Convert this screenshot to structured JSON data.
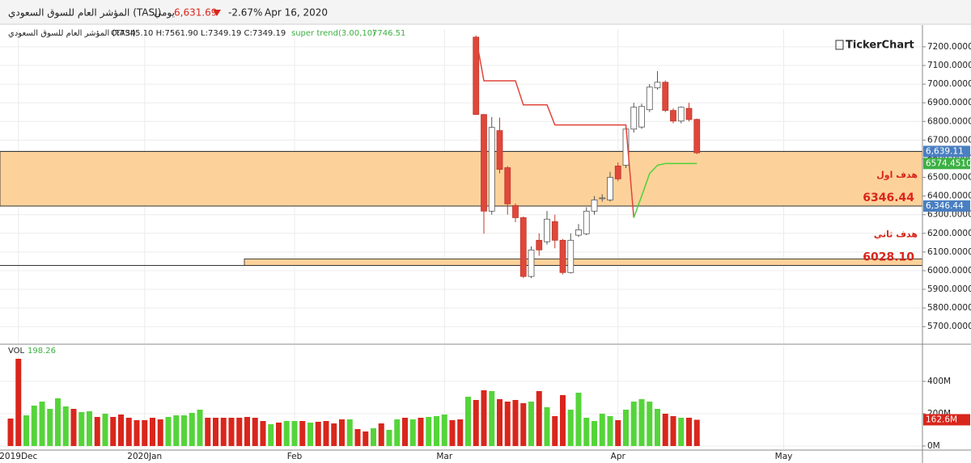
{
  "header": {
    "name": "المؤشر العام للسوق السعودي (TASI)",
    "period": "يومي",
    "last": "6,631.69",
    "change": "-2.67%",
    "date": "Apr 16, 2020"
  },
  "legend": {
    "name": "المؤشر العام للسوق السعودي (TASI)",
    "ohlc": "O:7345.10 H:7561.90 L:7349.19 C:7349.19",
    "indicator": "super trend(3.00,10)",
    "indicator_value": "7746.51",
    "volume": "VOL",
    "volume_value": "198.26"
  },
  "logo": "TickerChart",
  "chart_data": {
    "type": "candlestick",
    "categories": [
      null,
      "2019Dec",
      null,
      null,
      null,
      null,
      null,
      null,
      null,
      null,
      null,
      null,
      null,
      null,
      null,
      null,
      null,
      "2020Jan",
      null,
      null,
      null,
      null,
      null,
      null,
      null,
      null,
      null,
      null,
      null,
      null,
      null,
      null,
      null,
      null,
      null,
      null,
      "Feb",
      null,
      null,
      null,
      null,
      null,
      null,
      null,
      null,
      null,
      null,
      null,
      null,
      null,
      null,
      null,
      null,
      null,
      null,
      "Mar",
      null,
      null,
      null,
      null,
      null,
      null,
      null,
      null,
      null,
      null,
      null,
      null,
      null,
      null,
      null,
      null,
      null,
      null,
      null,
      null,
      null,
      "Apr",
      null,
      null,
      null,
      null,
      null,
      null,
      null,
      null,
      null,
      null,
      null,
      null,
      null,
      null,
      null,
      null,
      null,
      null,
      null,
      null,
      "May",
      null,
      null,
      null,
      null,
      null,
      null,
      null,
      null,
      null,
      null,
      null,
      null,
      null,
      null,
      null,
      null,
      null
    ],
    "open": [
      null,
      null,
      null,
      null,
      null,
      null,
      null,
      null,
      null,
      null,
      null,
      null,
      null,
      null,
      null,
      null,
      null,
      null,
      null,
      null,
      null,
      null,
      null,
      null,
      null,
      null,
      null,
      null,
      null,
      null,
      null,
      null,
      null,
      null,
      null,
      null,
      null,
      null,
      null,
      null,
      null,
      null,
      null,
      null,
      null,
      null,
      null,
      null,
      null,
      null,
      null,
      null,
      null,
      null,
      null,
      null,
      null,
      null,
      null,
      7252,
      6837,
      6319,
      6751,
      6552,
      6349,
      6284,
      5969,
      6163,
      6155,
      6263,
      6163,
      5990,
      6190,
      6198,
      6319,
      6388,
      6379,
      6561,
      6565,
      6759,
      6770,
      6863,
      6980,
      7010,
      6859,
      6802,
      6870,
      6811,
      null,
      null,
      null,
      null,
      null,
      null,
      null,
      null,
      null,
      null,
      null,
      null,
      null,
      null,
      null,
      null,
      null,
      null,
      null,
      null,
      null,
      null,
      null,
      null,
      null,
      null,
      null,
      null
    ],
    "high": [
      null,
      null,
      null,
      null,
      null,
      null,
      null,
      null,
      null,
      null,
      null,
      null,
      null,
      null,
      null,
      null,
      null,
      null,
      null,
      null,
      null,
      null,
      null,
      null,
      null,
      null,
      null,
      null,
      null,
      null,
      null,
      null,
      null,
      null,
      null,
      null,
      null,
      null,
      null,
      null,
      null,
      null,
      null,
      null,
      null,
      null,
      null,
      null,
      null,
      null,
      null,
      null,
      null,
      null,
      null,
      null,
      null,
      null,
      null,
      7260,
      6840,
      6824,
      6820,
      6560,
      6360,
      6290,
      6130,
      6200,
      6320,
      6300,
      6170,
      6200,
      6250,
      6340,
      6400,
      6410,
      6530,
      6580,
      6780,
      6900,
      6895,
      7000,
      7070,
      7020,
      6870,
      6880,
      6900,
      6815,
      null,
      null,
      null,
      null,
      null,
      null,
      null,
      null,
      null,
      null,
      null,
      null,
      null,
      null,
      null,
      null,
      null,
      null,
      null,
      null,
      null,
      null,
      null,
      null,
      null,
      null,
      null,
      null
    ],
    "low": [
      null,
      null,
      null,
      null,
      null,
      null,
      null,
      null,
      null,
      null,
      null,
      null,
      null,
      null,
      null,
      null,
      null,
      null,
      null,
      null,
      null,
      null,
      null,
      null,
      null,
      null,
      null,
      null,
      null,
      null,
      null,
      null,
      null,
      null,
      null,
      null,
      null,
      null,
      null,
      null,
      null,
      null,
      null,
      null,
      null,
      null,
      null,
      null,
      null,
      null,
      null,
      null,
      null,
      null,
      null,
      null,
      null,
      null,
      null,
      6837,
      6198,
      6300,
      6522,
      6300,
      6260,
      5960,
      5960,
      6080,
      6140,
      6120,
      5980,
      5985,
      6180,
      6190,
      6300,
      6370,
      6370,
      6480,
      6550,
      6740,
      6760,
      6850,
      6970,
      6850,
      6790,
      6790,
      6800,
      6625,
      null,
      null,
      null,
      null,
      null,
      null,
      null,
      null,
      null,
      null,
      null,
      null,
      null,
      null,
      null,
      null,
      null,
      null,
      null,
      null,
      null,
      null,
      null,
      null,
      null,
      null,
      null,
      null
    ],
    "close": [
      null,
      null,
      null,
      null,
      null,
      null,
      null,
      null,
      null,
      null,
      null,
      null,
      null,
      null,
      null,
      null,
      null,
      null,
      null,
      null,
      null,
      null,
      null,
      null,
      null,
      null,
      null,
      null,
      null,
      null,
      null,
      null,
      null,
      null,
      null,
      null,
      null,
      null,
      null,
      null,
      null,
      null,
      null,
      null,
      null,
      null,
      null,
      null,
      null,
      null,
      null,
      null,
      null,
      null,
      null,
      null,
      null,
      null,
      null,
      6837,
      6319,
      6768,
      6543,
      6358,
      6284,
      5969,
      6111,
      6111,
      6276,
      6163,
      5990,
      6163,
      6219,
      6319,
      6379,
      6390,
      6500,
      6492,
      6759,
      6876,
      6880,
      6984,
      7010,
      6859,
      6802,
      6876,
      6810,
      6631.69,
      null,
      null,
      null,
      null,
      null,
      null,
      null,
      null,
      null,
      null,
      null,
      null,
      null,
      null,
      null,
      null,
      null,
      null,
      null,
      null,
      null,
      null,
      null,
      null,
      null,
      null,
      null,
      null
    ],
    "up_color": "#ffffff",
    "down_color": "#e0473c",
    "ylim": [
      5610,
      7295
    ],
    "yticks": [
      {
        "value": 5700,
        "label": "5700.0000"
      },
      {
        "value": 5800,
        "label": "5800.0000"
      },
      {
        "value": 5900,
        "label": "5900.0000"
      },
      {
        "value": 6000,
        "label": "6000.0000"
      },
      {
        "value": 6100,
        "label": "6100.0000"
      },
      {
        "value": 6200,
        "label": "6200.0000"
      },
      {
        "value": 6300,
        "label": "6300.0000"
      },
      {
        "value": 6400,
        "label": "6400.0000"
      },
      {
        "value": 6500,
        "label": "6500.0000"
      },
      {
        "value": 6600,
        "label": "6600.0000"
      },
      {
        "value": 6700,
        "label": "6700.0000"
      },
      {
        "value": 6800,
        "label": "6800.0000"
      },
      {
        "value": 6900,
        "label": "6900.0000"
      },
      {
        "value": 7000,
        "label": "7000.0000"
      },
      {
        "value": 7100,
        "label": "7100.0000"
      },
      {
        "value": 7200,
        "label": "7200.0000"
      }
    ],
    "grid": true,
    "supertrend": {
      "down": {
        "color": "#e0443a",
        "values": [
          null,
          null,
          null,
          null,
          null,
          null,
          null,
          null,
          null,
          null,
          null,
          null,
          null,
          null,
          null,
          null,
          null,
          null,
          null,
          null,
          null,
          null,
          null,
          null,
          null,
          null,
          null,
          null,
          null,
          null,
          null,
          null,
          null,
          null,
          null,
          null,
          null,
          null,
          null,
          null,
          null,
          null,
          null,
          null,
          null,
          null,
          null,
          null,
          null,
          null,
          null,
          null,
          null,
          null,
          null,
          null,
          null,
          null,
          null,
          7250,
          7018,
          7018,
          7018,
          7018,
          7018,
          6889,
          6889,
          6889,
          6889,
          6781,
          6781,
          6781,
          6781,
          6781,
          6781,
          6781,
          6781,
          6781,
          6781,
          6284,
          null,
          null,
          null,
          null,
          null,
          null,
          null,
          null,
          null,
          null,
          null,
          null,
          null,
          null,
          null,
          null,
          null,
          null,
          null,
          null,
          null,
          null,
          null,
          null,
          null,
          null,
          null,
          null,
          null,
          null,
          null,
          null,
          null,
          null,
          null,
          null
        ]
      },
      "up": {
        "color": "#4cd137",
        "values": [
          null,
          null,
          null,
          null,
          null,
          null,
          null,
          null,
          null,
          null,
          null,
          null,
          null,
          null,
          null,
          null,
          null,
          null,
          null,
          null,
          null,
          null,
          null,
          null,
          null,
          null,
          null,
          null,
          null,
          null,
          null,
          null,
          null,
          null,
          null,
          null,
          null,
          null,
          null,
          null,
          null,
          null,
          null,
          null,
          null,
          null,
          null,
          null,
          null,
          null,
          null,
          null,
          null,
          null,
          null,
          null,
          null,
          null,
          null,
          null,
          null,
          null,
          null,
          null,
          null,
          null,
          null,
          null,
          null,
          null,
          null,
          null,
          null,
          null,
          null,
          null,
          null,
          null,
          null,
          6284,
          6400,
          6520,
          6565,
          6574.451,
          6574.451,
          6574.451,
          6574.451,
          6574.451,
          null,
          null,
          null,
          null,
          null,
          null,
          null,
          null,
          null,
          null,
          null,
          null,
          null,
          null,
          null,
          null,
          null,
          null,
          null,
          null,
          null,
          null,
          null,
          null,
          null,
          null,
          null,
          null
        ]
      },
      "tag": {
        "value": 6574.451,
        "label": "6574.4510"
      }
    },
    "levels": [
      {
        "value": 6639.11,
        "label": "6,639.11"
      },
      {
        "value": 6346.44,
        "label": "6,346.44"
      }
    ],
    "zones": [
      {
        "low": 6346.44,
        "high": 6639.11
      },
      {
        "low": 6028.1,
        "high": 6063
      }
    ],
    "zone_color": "#fdd29a",
    "targets": [
      {
        "text": "هدف اول",
        "value": 6346.44,
        "value_label": "6346.44"
      },
      {
        "text": "هدف ثاني",
        "value": 6028.1,
        "value_label": "6028.10"
      }
    ],
    "volume": {
      "values": [
        170,
        540,
        190,
        250,
        275,
        230,
        295,
        245,
        230,
        210,
        215,
        180,
        200,
        180,
        195,
        175,
        160,
        160,
        175,
        165,
        180,
        190,
        190,
        205,
        225,
        175,
        175,
        175,
        175,
        175,
        180,
        175,
        155,
        135,
        145,
        155,
        155,
        155,
        145,
        150,
        155,
        140,
        165,
        165,
        105,
        90,
        110,
        140,
        100,
        165,
        175,
        165,
        175,
        180,
        185,
        195,
        160,
        165,
        305,
        285,
        345,
        340,
        290,
        275,
        285,
        265,
        275,
        340,
        240,
        185,
        315,
        225,
        330,
        175,
        155,
        200,
        185,
        160,
        225,
        275,
        290,
        275,
        230,
        200,
        185,
        175,
        175,
        162.6,
        null,
        null,
        null,
        null,
        null,
        null,
        null,
        null,
        null,
        null,
        null,
        null,
        null,
        null,
        null,
        null,
        null,
        null,
        null,
        null,
        null,
        null,
        null,
        null,
        null,
        null,
        null,
        null
      ],
      "colors": [
        "#d9261c",
        "#d9261c",
        "#55d43a",
        "#55d43a",
        "#55d43a",
        "#55d43a",
        "#55d43a",
        "#55d43a",
        "#d9261c",
        "#55d43a",
        "#55d43a",
        "#d9261c",
        "#55d43a",
        "#d9261c",
        "#d9261c",
        "#d9261c",
        "#d9261c",
        "#d9261c",
        "#d9261c",
        "#d9261c",
        "#55d43a",
        "#55d43a",
        "#55d43a",
        "#55d43a",
        "#55d43a",
        "#d9261c",
        "#d9261c",
        "#d9261c",
        "#d9261c",
        "#d9261c",
        "#d9261c",
        "#d9261c",
        "#d9261c",
        "#55d43a",
        "#d9261c",
        "#55d43a",
        "#55d43a",
        "#d9261c",
        "#55d43a",
        "#d9261c",
        "#d9261c",
        "#d9261c",
        "#d9261c",
        "#55d43a",
        "#d9261c",
        "#d9261c",
        "#55d43a",
        "#d9261c",
        "#55d43a",
        "#55d43a",
        "#d9261c",
        "#55d43a",
        "#d9261c",
        "#55d43a",
        "#55d43a",
        "#55d43a",
        "#d9261c",
        "#d9261c",
        "#55d43a",
        "#d9261c",
        "#d9261c",
        "#55d43a",
        "#d9261c",
        "#d9261c",
        "#d9261c",
        "#d9261c",
        "#55d43a",
        "#d9261c",
        "#55d43a",
        "#d9261c",
        "#d9261c",
        "#55d43a",
        "#55d43a",
        "#55d43a",
        "#55d43a",
        "#55d43a",
        "#55d43a",
        "#d9261c",
        "#55d43a",
        "#55d43a",
        "#55d43a",
        "#55d43a",
        "#55d43a",
        "#d9261c",
        "#d9261c",
        "#55d43a",
        "#d9261c",
        "#d9261c",
        null,
        null,
        null,
        null,
        null,
        null,
        null,
        null,
        null,
        null,
        null,
        null,
        null,
        null,
        null,
        null,
        null,
        null,
        null,
        null,
        null,
        null,
        null,
        null,
        null,
        null,
        null,
        null
      ],
      "ylim": [
        -20,
        620
      ],
      "yticks": [
        {
          "value": 0,
          "label": "0M"
        },
        {
          "value": 200,
          "label": "200M"
        },
        {
          "value": 400,
          "label": "400M"
        }
      ],
      "tag": {
        "value": 162.6,
        "label": "162.6M"
      }
    }
  }
}
